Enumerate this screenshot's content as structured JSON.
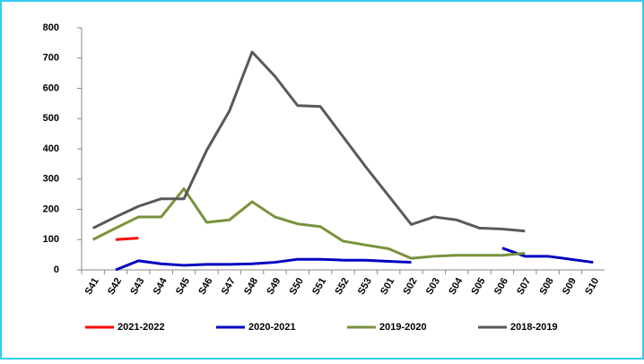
{
  "chart_data": {
    "type": "line",
    "categories": [
      "S41",
      "S42",
      "S43",
      "S44",
      "S45",
      "S46",
      "S47",
      "S48",
      "S49",
      "S50",
      "S51",
      "S52",
      "S53",
      "S01",
      "S02",
      "S03",
      "S04",
      "S05",
      "S06",
      "S07",
      "S08",
      "S09",
      "S10"
    ],
    "series": [
      {
        "name": "2021-2022",
        "color": "#ff0000",
        "values": [
          null,
          100,
          105,
          null,
          null,
          null,
          null,
          null,
          null,
          null,
          null,
          null,
          null,
          null,
          null,
          null,
          null,
          null,
          null,
          null,
          null,
          null,
          null
        ]
      },
      {
        "name": "2020-2021",
        "color": "#0000c0",
        "values": [
          null,
          0,
          30,
          20,
          15,
          18,
          18,
          20,
          25,
          35,
          35,
          32,
          32,
          28,
          25,
          null,
          null,
          null,
          72,
          45,
          45,
          35,
          25
        ]
      },
      {
        "name": "2019-2020",
        "color": "#77933c",
        "values": [
          100,
          138,
          175,
          175,
          268,
          157,
          165,
          225,
          175,
          152,
          143,
          95,
          82,
          70,
          38,
          45,
          48,
          48,
          48,
          55,
          null,
          null,
          null
        ]
      },
      {
        "name": "2018-2019",
        "color": "#595959",
        "values": [
          138,
          175,
          210,
          235,
          235,
          395,
          525,
          720,
          640,
          543,
          540,
          440,
          340,
          245,
          150,
          175,
          165,
          138,
          135,
          128,
          null,
          null,
          null
        ]
      }
    ],
    "ylim": [
      0,
      800
    ],
    "yticks": [
      0,
      100,
      200,
      300,
      400,
      500,
      600,
      700,
      800
    ],
    "grid": false,
    "legend": "bottom"
  }
}
